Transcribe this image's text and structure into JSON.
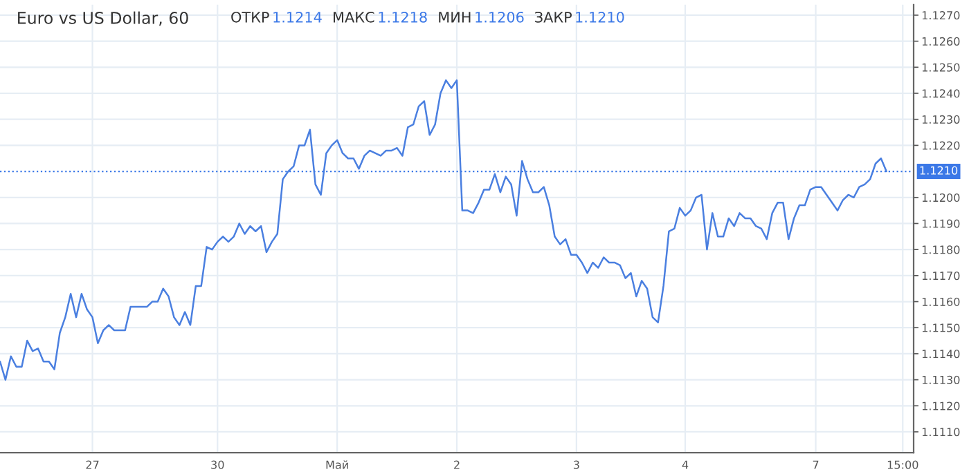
{
  "chart_data": {
    "type": "line",
    "title": "Euro vs US Dollar, 60",
    "annotations": [
      "ОТКР",
      "1.1214",
      "МАКС",
      "1.1218",
      "МИН",
      "1.1206",
      "ЗАКР",
      "1.1210"
    ],
    "categories": [
      null,
      null,
      null,
      null,
      null,
      null,
      null,
      null,
      null,
      null,
      null,
      null,
      null,
      null,
      null,
      null,
      null,
      "27",
      null,
      null,
      null,
      null,
      null,
      null,
      null,
      null,
      null,
      null,
      null,
      null,
      null,
      null,
      null,
      null,
      null,
      null,
      null,
      null,
      null,
      null,
      "30",
      null,
      null,
      null,
      null,
      null,
      null,
      null,
      null,
      null,
      null,
      null,
      null,
      null,
      null,
      null,
      null,
      null,
      null,
      null,
      null,
      null,
      "Май",
      null,
      null,
      null,
      null,
      null,
      null,
      null,
      null,
      null,
      null,
      null,
      null,
      null,
      null,
      null,
      null,
      null,
      null,
      null,
      null,
      null,
      "2",
      null,
      null,
      null,
      null,
      null,
      null,
      null,
      null,
      null,
      null,
      null,
      null,
      null,
      null,
      null,
      null,
      null,
      null,
      null,
      null,
      null,
      "3",
      null,
      null,
      null,
      null,
      null,
      null,
      null,
      null,
      null,
      null,
      null,
      null,
      null,
      null,
      null,
      null,
      null,
      null,
      null,
      "4",
      null,
      null,
      null,
      null,
      null,
      null,
      null,
      null,
      null,
      null,
      null,
      null,
      null,
      null,
      null,
      null,
      null,
      null,
      null,
      null,
      null,
      null,
      null,
      "7",
      null,
      null,
      null,
      null,
      null,
      null,
      null,
      null,
      null,
      null,
      null,
      null,
      null,
      null,
      null,
      "15:00"
    ],
    "series": [
      {
        "color": "#4a7fe0",
        "values": [
          1.1137,
          1.113,
          1.1139,
          1.1135,
          1.1135,
          1.1145,
          1.1141,
          1.1142,
          1.1137,
          1.1137,
          1.1134,
          1.1148,
          1.1154,
          1.1163,
          1.1154,
          1.1163,
          1.1157,
          1.1154,
          1.1144,
          1.1149,
          1.1151,
          1.1149,
          1.1149,
          1.1149,
          1.1158,
          1.1158,
          1.1158,
          1.1158,
          1.116,
          1.116,
          1.1165,
          1.1162,
          1.1154,
          1.1151,
          1.1156,
          1.1151,
          1.1166,
          1.1166,
          1.1181,
          1.118,
          1.1183,
          1.1185,
          1.1183,
          1.1185,
          1.119,
          1.1186,
          1.1189,
          1.1187,
          1.1189,
          1.1179,
          1.1183,
          1.1186,
          1.1207,
          1.121,
          1.1212,
          1.122,
          1.122,
          1.1226,
          1.1205,
          1.1201,
          1.1217,
          1.122,
          1.1222,
          1.1217,
          1.1215,
          1.1215,
          1.1211,
          1.1216,
          1.1218,
          1.1217,
          1.1216,
          1.1218,
          1.1218,
          1.1219,
          1.1216,
          1.1227,
          1.1228,
          1.1235,
          1.1237,
          1.1224,
          1.1228,
          1.124,
          1.1245,
          1.1242,
          1.1245,
          1.1195,
          1.1195,
          1.1194,
          1.1198,
          1.1203,
          1.1203,
          1.1209,
          1.1202,
          1.1208,
          1.1205,
          1.1193,
          1.1214,
          1.1207,
          1.1202,
          1.1202,
          1.1204,
          1.1197,
          1.1185,
          1.1182,
          1.1184,
          1.1178,
          1.1178,
          1.1175,
          1.1171,
          1.1175,
          1.1173,
          1.1177,
          1.1175,
          1.1175,
          1.1174,
          1.1169,
          1.1171,
          1.1162,
          1.1168,
          1.1165,
          1.1154,
          1.1152,
          1.1166,
          1.1187,
          1.1188,
          1.1196,
          1.1193,
          1.1195,
          1.12,
          1.1201,
          1.118,
          1.1194,
          1.1185,
          1.1185,
          1.1192,
          1.1189,
          1.1194,
          1.1192,
          1.1192,
          1.1189,
          1.1188,
          1.1184,
          1.1194,
          1.1198,
          1.1198,
          1.1184,
          1.1192,
          1.1197,
          1.1197,
          1.1203,
          1.1204,
          1.1204,
          1.1201,
          1.1198,
          1.1195,
          1.1199,
          1.1201,
          1.12,
          1.1204,
          1.1205,
          1.1207,
          1.1213,
          1.1215,
          1.121,
          null,
          null,
          null
        ]
      }
    ],
    "ylim": [
      1.1102,
      1.1274
    ],
    "yticks": [
      {
        "value": 1.111,
        "label": "1.1110"
      },
      {
        "value": 1.112,
        "label": "1.1120"
      },
      {
        "value": 1.113,
        "label": "1.1130"
      },
      {
        "value": 1.114,
        "label": "1.1140"
      },
      {
        "value": 1.115,
        "label": "1.1150"
      },
      {
        "value": 1.116,
        "label": "1.1160"
      },
      {
        "value": 1.117,
        "label": "1.1170"
      },
      {
        "value": 1.118,
        "label": "1.1180"
      },
      {
        "value": 1.119,
        "label": "1.1190"
      },
      {
        "value": 1.12,
        "label": "1.1200"
      },
      {
        "value": 1.122,
        "label": "1.1220"
      },
      {
        "value": 1.123,
        "label": "1.1230"
      },
      {
        "value": 1.124,
        "label": "1.1240"
      },
      {
        "value": 1.125,
        "label": "1.1250"
      },
      {
        "value": 1.126,
        "label": "1.1260"
      },
      {
        "value": 1.127,
        "label": "1.1270"
      }
    ],
    "ref_lines": [
      {
        "axis": "y",
        "value": 1.121,
        "label": "1.1210",
        "color": "#3b78e7",
        "line_style": "dotted"
      }
    ],
    "grid": true,
    "marker": "none",
    "line_style": "solid",
    "legend": false
  }
}
